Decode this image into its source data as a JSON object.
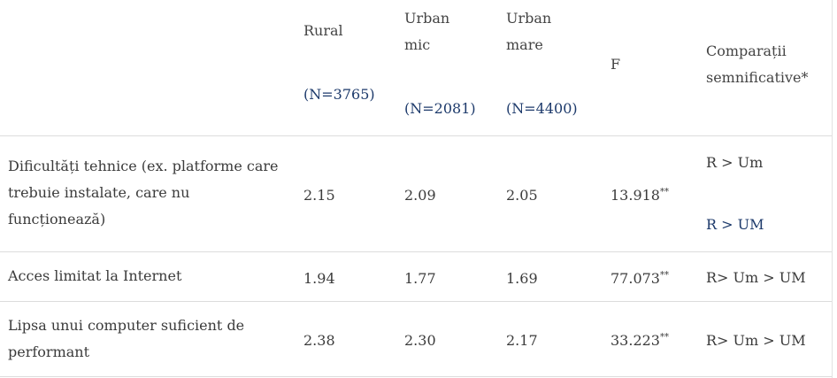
{
  "columns": {
    "rural": {
      "name": "Rural",
      "n": "(N=3765)"
    },
    "urban_mic": {
      "name_line1": "Urban",
      "name_line2": "mic",
      "n": "(N=2081)"
    },
    "urban_mare": {
      "name_line1": "Urban",
      "name_line2": "mare",
      "n": "(N=4400)"
    },
    "f": "F",
    "comp": {
      "line1": "Comparații",
      "line2": "semnificative*"
    }
  },
  "rows": [
    {
      "label_lines": [
        "Dificultăți tehnice (ex. platforme care",
        "trebuie instalate, care nu",
        "funcționează)"
      ],
      "rural": "2.15",
      "urban_mic": "2.09",
      "urban_mare": "2.05",
      "f": "13.918",
      "f_sig": "**",
      "comp_lines": [
        "R > Um",
        "R > UM"
      ]
    },
    {
      "label_lines": [
        "Acces limitat la Internet"
      ],
      "rural": "1.94",
      "urban_mic": "1.77",
      "urban_mare": "1.69",
      "f": "77.073",
      "f_sig": "**",
      "comp_lines": [
        "R> Um > UM"
      ]
    },
    {
      "label_lines": [
        "Lipsa unui computer suficient de",
        "performant"
      ],
      "rural": "2.38",
      "urban_mic": "2.30",
      "urban_mare": "2.17",
      "f": "33.223",
      "f_sig": "**",
      "comp_lines": [
        "R> Um > UM"
      ]
    }
  ]
}
